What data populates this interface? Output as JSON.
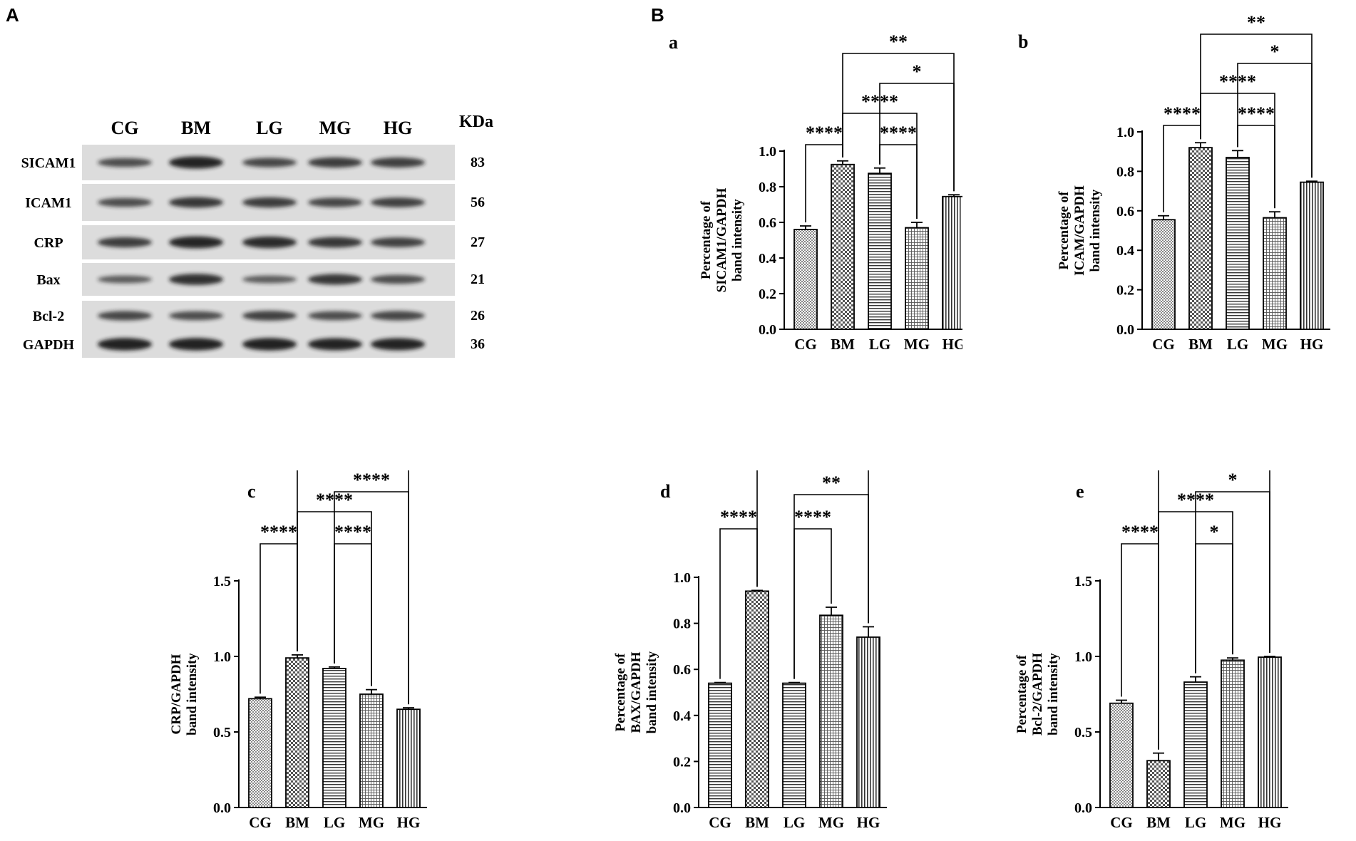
{
  "figure": {
    "panel_A_letter": "A",
    "panel_B_letter": "B"
  },
  "western_blot": {
    "lanes": [
      "CG",
      "BM",
      "LG",
      "MG",
      "HG"
    ],
    "kda_header": "KDa",
    "rows": [
      {
        "protein": "SICAM1",
        "kda": "83",
        "intensity": [
          0.55,
          0.92,
          0.6,
          0.7,
          0.68
        ]
      },
      {
        "protein": "ICAM1",
        "kda": "56",
        "intensity": [
          0.55,
          0.75,
          0.7,
          0.6,
          0.65
        ]
      },
      {
        "protein": "CRP",
        "kda": "27",
        "intensity": [
          0.7,
          0.9,
          0.85,
          0.75,
          0.65
        ]
      },
      {
        "protein": "Bax",
        "kda": "21",
        "intensity": [
          0.4,
          0.8,
          0.4,
          0.75,
          0.55
        ]
      },
      {
        "protein": "Bcl-2",
        "kda": "26",
        "intensity": [
          0.6,
          0.55,
          0.65,
          0.55,
          0.6
        ]
      },
      {
        "protein": "GAPDH",
        "kda": "36",
        "intensity": [
          0.95,
          0.95,
          0.95,
          0.92,
          0.92
        ]
      }
    ],
    "colors": {
      "band": "#1a1a1a",
      "membrane": "#dcdcdc"
    }
  },
  "chart_data": [
    {
      "type": "bar",
      "panel": "a",
      "categories": [
        "CG",
        "BM",
        "LG",
        "MG",
        "HG"
      ],
      "values": [
        0.56,
        0.925,
        0.875,
        0.57,
        0.745
      ],
      "errors": [
        0.02,
        0.02,
        0.03,
        0.03,
        0.01
      ],
      "patterns": [
        "dots",
        "checker",
        "hlines",
        "grid",
        "vlines"
      ],
      "ylabel": [
        "Percentage of",
        "SICAM1/GAPDH",
        "band intensity"
      ],
      "ylim": [
        0,
        1.0
      ],
      "yticks": [
        "0.0",
        "0.2",
        "0.4",
        "0.6",
        "0.8",
        "1.0"
      ],
      "ytick_values": [
        0,
        0.2,
        0.4,
        0.6,
        0.8,
        1.0
      ],
      "comparisons": [
        {
          "from": 0,
          "to": 1,
          "label": "****",
          "level": 0
        },
        {
          "from": 2,
          "to": 3,
          "label": "****",
          "level": 0
        },
        {
          "from": 1,
          "to": 3,
          "label": "****",
          "level": 1
        },
        {
          "from": 2,
          "to": 4,
          "label": "*",
          "level": 2
        },
        {
          "from": 1,
          "to": 4,
          "label": "**",
          "level": 3
        }
      ]
    },
    {
      "type": "bar",
      "panel": "b",
      "categories": [
        "CG",
        "BM",
        "LG",
        "MG",
        "HG"
      ],
      "values": [
        0.555,
        0.92,
        0.87,
        0.565,
        0.745
      ],
      "errors": [
        0.02,
        0.025,
        0.035,
        0.03,
        0.005
      ],
      "patterns": [
        "dots",
        "checker",
        "hlines",
        "grid",
        "vlines"
      ],
      "ylabel": [
        "Percentage of",
        "ICAM/GAPDH",
        "band intensity"
      ],
      "ylim": [
        0,
        1.0
      ],
      "yticks": [
        "0.0",
        "0.2",
        "0.4",
        "0.6",
        "0.8",
        "1.0"
      ],
      "ytick_values": [
        0,
        0.2,
        0.4,
        0.6,
        0.8,
        1.0
      ],
      "comparisons": [
        {
          "from": 0,
          "to": 1,
          "label": "****",
          "level": 0
        },
        {
          "from": 2,
          "to": 3,
          "label": "****",
          "level": 0
        },
        {
          "from": 1,
          "to": 3,
          "label": "****",
          "level": 1
        },
        {
          "from": 2,
          "to": 4,
          "label": "*",
          "level": 2
        },
        {
          "from": 1,
          "to": 4,
          "label": "**",
          "level": 3
        }
      ]
    },
    {
      "type": "bar",
      "panel": "c",
      "categories": [
        "CG",
        "BM",
        "LG",
        "MG",
        "HG"
      ],
      "values": [
        0.72,
        0.99,
        0.92,
        0.75,
        0.65
      ],
      "errors": [
        0.01,
        0.02,
        0.01,
        0.03,
        0.01
      ],
      "patterns": [
        "dots",
        "checker",
        "hlines",
        "grid",
        "vlines"
      ],
      "ylabel": [
        "Percentage of",
        "CRP/GAPDH",
        "band intensity"
      ],
      "ylim": [
        0,
        1.5
      ],
      "yticks": [
        "0.0",
        "0.5",
        "1.0",
        "1.5"
      ],
      "ytick_values": [
        0,
        0.5,
        1.0,
        1.5
      ],
      "comparisons": [
        {
          "from": 0,
          "to": 1,
          "label": "****",
          "level": 0
        },
        {
          "from": 2,
          "to": 3,
          "label": "****",
          "level": 0
        },
        {
          "from": 1,
          "to": 3,
          "label": "****",
          "level": 1
        },
        {
          "from": 2,
          "to": 4,
          "label": "****",
          "level": 2
        },
        {
          "from": 1,
          "to": 4,
          "label": "****",
          "level": 3
        }
      ]
    },
    {
      "type": "bar",
      "panel": "d",
      "categories": [
        "CG",
        "BM",
        "LG",
        "MG",
        "HG"
      ],
      "values": [
        0.54,
        0.94,
        0.54,
        0.835,
        0.74
      ],
      "errors": [
        0.003,
        0.003,
        0.003,
        0.035,
        0.045
      ],
      "patterns": [
        "hlines",
        "checker",
        "hlines",
        "grid",
        "vlines"
      ],
      "ylabel": [
        "Percentage of",
        "BAX/GAPDH",
        "band intensity"
      ],
      "ylim": [
        0,
        1.0
      ],
      "yticks": [
        "0.0",
        "0.2",
        "0.4",
        "0.6",
        "0.8",
        "1.0"
      ],
      "ytick_values": [
        0,
        0.2,
        0.4,
        0.6,
        0.8,
        1.0
      ],
      "comparisons": [
        {
          "from": 0,
          "to": 1,
          "label": "****",
          "level": 0
        },
        {
          "from": 2,
          "to": 3,
          "label": "****",
          "level": 0
        },
        {
          "from": 2,
          "to": 4,
          "label": "**",
          "level": 1
        },
        {
          "from": 1,
          "to": 4,
          "label": "**",
          "level": 2
        }
      ]
    },
    {
      "type": "bar",
      "panel": "e",
      "categories": [
        "CG",
        "BM",
        "LG",
        "MG",
        "HG"
      ],
      "values": [
        0.69,
        0.31,
        0.83,
        0.975,
        0.995
      ],
      "errors": [
        0.02,
        0.05,
        0.035,
        0.015,
        0.005
      ],
      "patterns": [
        "dots",
        "checker",
        "hlines",
        "grid",
        "vlines"
      ],
      "ylabel": [
        "Percentage of",
        "Bcl-2/GAPDH",
        "band intensity"
      ],
      "ylim": [
        0,
        1.5
      ],
      "yticks": [
        "0.0",
        "0.5",
        "1.0",
        "1.5"
      ],
      "ytick_values": [
        0,
        0.5,
        1.0,
        1.5
      ],
      "comparisons": [
        {
          "from": 0,
          "to": 1,
          "label": "****",
          "level": 0
        },
        {
          "from": 2,
          "to": 3,
          "label": "*",
          "level": 0
        },
        {
          "from": 1,
          "to": 3,
          "label": "****",
          "level": 1
        },
        {
          "from": 2,
          "to": 4,
          "label": "*",
          "level": 2
        },
        {
          "from": 1,
          "to": 4,
          "label": "****",
          "level": 3
        }
      ]
    }
  ]
}
